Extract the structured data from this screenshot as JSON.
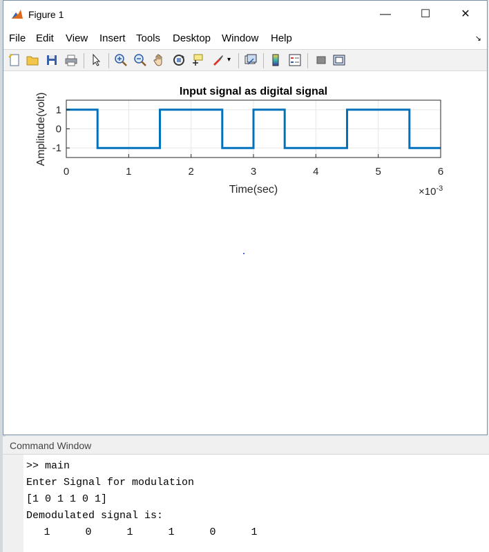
{
  "window": {
    "title": "Figure 1",
    "controls": {
      "minimize": "—",
      "maximize": "☐",
      "close": "✕"
    }
  },
  "menu": {
    "items": [
      "File",
      "Edit",
      "View",
      "Insert",
      "Tools",
      "Desktop",
      "Window",
      "Help"
    ],
    "overflow_icon": "arrow-icon"
  },
  "toolbar": {
    "icons": [
      "new-figure-icon",
      "open-icon",
      "save-icon",
      "print-icon",
      "pointer-icon",
      "zoom-in-icon",
      "zoom-out-icon",
      "pan-hand-icon",
      "rotate-3d-icon",
      "data-cursor-icon",
      "brush-icon",
      "brush-dropdown-icon",
      "link-plot-icon",
      "colorbar-icon",
      "legend-icon",
      "hide-plot-tools-icon",
      "show-plot-tools-icon"
    ]
  },
  "chart_data": {
    "type": "line",
    "title": "Input signal as digital signal",
    "xlabel": "Time(sec)",
    "ylabel": "Amplitude(volt)",
    "x_exponent_label": "×10",
    "x_exponent": "-3",
    "xlim": [
      0,
      6
    ],
    "ylim": [
      -1.5,
      1.5
    ],
    "xticks": [
      "0",
      "1",
      "2",
      "3",
      "4",
      "5",
      "6"
    ],
    "yticks": [
      "1",
      "0",
      "-1"
    ],
    "grid": true,
    "color": "#0072bd",
    "series": [
      {
        "x": [
          0,
          0.5,
          0.5,
          1.5,
          1.5,
          2.5,
          2.5,
          3.0,
          3.0,
          3.5,
          3.5,
          4.5,
          4.5,
          5.5,
          5.5,
          6.0
        ],
        "y": [
          1,
          1,
          -1,
          -1,
          1,
          1,
          -1,
          -1,
          1,
          1,
          -1,
          -1,
          1,
          1,
          -1,
          -1
        ]
      }
    ]
  },
  "command_window": {
    "title": "Command Window",
    "lines": [
      {
        "prompt": ">> ",
        "text": "main"
      },
      {
        "prompt": "",
        "text": "Enter Signal for modulation"
      },
      {
        "prompt": "",
        "text": "[1 0 1 1 0 1]"
      },
      {
        "prompt": "",
        "text": "Demodulated signal is:"
      }
    ],
    "demodulated_values": [
      "1",
      "0",
      "1",
      "1",
      "0",
      "1"
    ]
  }
}
